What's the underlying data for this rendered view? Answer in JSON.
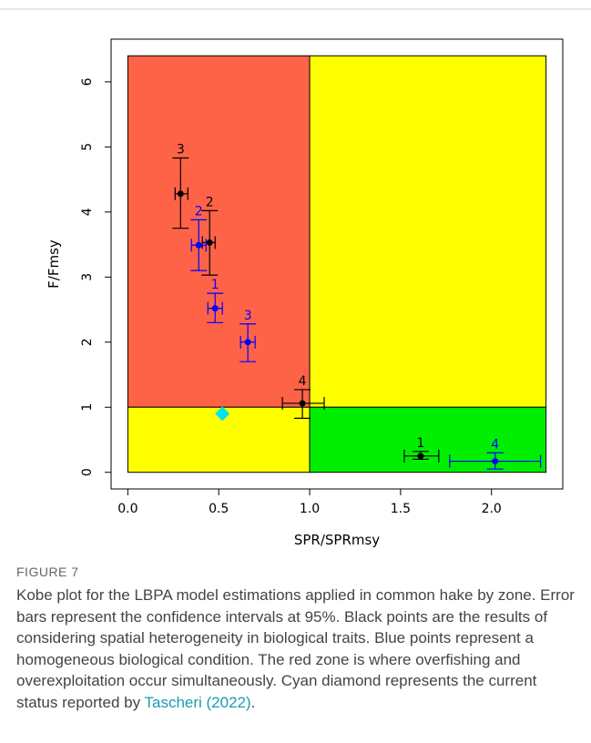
{
  "chart_data": {
    "type": "scatter",
    "xlabel": "SPR/SPRmsy",
    "ylabel": "F/Fmsy",
    "xlim": [
      -0.092,
      2.392
    ],
    "ylim": [
      -0.256,
      6.656
    ],
    "xticks": [
      {
        "value": 0,
        "label": "0.0"
      },
      {
        "value": 0.5,
        "label": "0.5"
      },
      {
        "value": 1,
        "label": "1.0"
      },
      {
        "value": 1.5,
        "label": "1.5"
      },
      {
        "value": 2,
        "label": "2.0"
      }
    ],
    "yticks": [
      0,
      1,
      2,
      3,
      4,
      5,
      6
    ],
    "zones": [
      {
        "color": "#ff6347",
        "x0": 0,
        "x1": 1,
        "y0": 1,
        "y1": 6.4
      },
      {
        "color": "#ffff00",
        "x0": 1,
        "x1": 2.3,
        "y0": 1,
        "y1": 6.4
      },
      {
        "color": "#ffff00",
        "x0": 0,
        "x1": 1,
        "y0": 0,
        "y1": 1
      },
      {
        "color": "#00ee00",
        "x0": 1,
        "x1": 2.3,
        "y0": 0,
        "y1": 1
      }
    ],
    "series": [
      {
        "color": "#000000",
        "labels": [
          "3",
          "2",
          "4",
          "1"
        ],
        "x": [
          0.29,
          0.45,
          0.96,
          1.61
        ],
        "values": [
          4.28,
          3.53,
          1.06,
          0.25
        ],
        "x_low": [
          0.26,
          0.41,
          0.85,
          1.52
        ],
        "x_high": [
          0.33,
          0.48,
          1.08,
          1.71
        ],
        "y_low": [
          3.75,
          3.03,
          0.83,
          0.2
        ],
        "y_high": [
          4.83,
          4.02,
          1.27,
          0.32
        ]
      },
      {
        "color": "#0000ff",
        "labels": [
          "2",
          "1",
          "3",
          "4"
        ],
        "x": [
          0.39,
          0.48,
          0.66,
          2.02
        ],
        "values": [
          3.49,
          2.52,
          2.0,
          0.17
        ],
        "x_low": [
          0.35,
          0.44,
          0.62,
          1.77
        ],
        "x_high": [
          0.43,
          0.52,
          0.7,
          2.27
        ],
        "y_low": [
          3.1,
          2.3,
          1.7,
          0.05
        ],
        "y_high": [
          3.88,
          2.75,
          2.28,
          0.3
        ]
      }
    ],
    "current": {
      "color": "#00e5ee",
      "x": 0.52,
      "value": 0.9
    }
  },
  "figure": {
    "label": "FIGURE 7",
    "caption": "Kobe plot for the LBPA model estimations applied in common hake by zone. Error bars represent the confidence intervals at 95%. Black points are the results of considering spatial heterogeneity in biological traits. Blue points represent a homogeneous biological condition. The red zone is where overfishing and overexploitation occur simultaneously. Cyan diamond represents the current status reported by ",
    "link": "Tascheri (2022)",
    "end": "."
  }
}
